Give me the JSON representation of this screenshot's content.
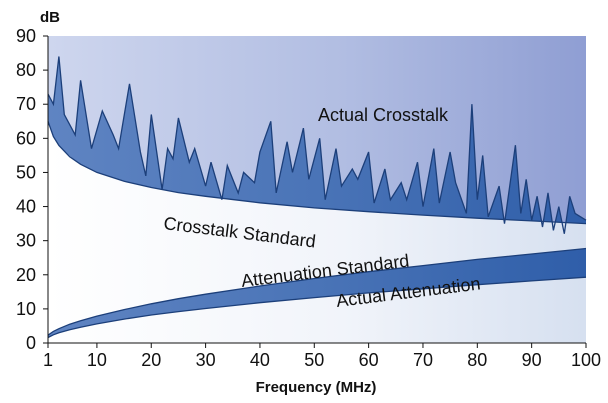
{
  "chart_data": {
    "type": "area",
    "title": "",
    "xlabel": "Frequency (MHz)",
    "ylabel": "dB",
    "xlim": [
      1,
      100
    ],
    "ylim": [
      0,
      90
    ],
    "x_ticks": [
      1,
      10,
      20,
      30,
      40,
      50,
      60,
      70,
      80,
      90,
      100
    ],
    "y_ticks": [
      0,
      10,
      20,
      30,
      40,
      50,
      60,
      70,
      80,
      90
    ],
    "grid": false,
    "legend": "none",
    "colors": {
      "band_dark": "#3a66a8",
      "band_light": "#ffffff",
      "background_top": "#9aa6d6",
      "background_bottom": "#ffffff",
      "line": "#1c3f7a"
    },
    "series": [
      {
        "name": "Actual Crosstalk",
        "x": [
          1,
          2,
          3,
          4,
          6,
          7,
          9,
          11,
          13,
          14,
          16,
          18,
          19,
          20,
          22,
          23,
          24,
          25,
          27,
          28,
          30,
          31,
          33,
          34,
          36,
          37,
          39,
          40,
          42,
          43,
          45,
          46,
          48,
          49,
          51,
          52,
          54,
          55,
          57,
          58,
          60,
          61,
          63,
          64,
          66,
          67,
          69,
          70,
          72,
          73,
          75,
          76,
          78,
          79,
          80,
          81,
          82,
          84,
          85,
          87,
          88,
          89,
          90,
          91,
          92,
          93,
          94,
          95,
          96,
          97,
          98,
          100
        ],
        "y": [
          73,
          70,
          84,
          67,
          61,
          77,
          57,
          68,
          61,
          57,
          76,
          56,
          49,
          67,
          45,
          57,
          54,
          66,
          53,
          57,
          46,
          53,
          42,
          52,
          44,
          50,
          47,
          56,
          65,
          44,
          59,
          50,
          63,
          48,
          60,
          42,
          57,
          46,
          51,
          48,
          56,
          41,
          51,
          42,
          47,
          42,
          53,
          40,
          57,
          41,
          56,
          47,
          38,
          70,
          42,
          55,
          37,
          46,
          35,
          58,
          38,
          48,
          36,
          43,
          34,
          44,
          33,
          40,
          32,
          43,
          38,
          36
        ]
      },
      {
        "name": "Crosstalk Standard",
        "x": [
          1,
          2,
          3,
          5,
          7,
          10,
          15,
          20,
          25,
          30,
          40,
          50,
          60,
          70,
          80,
          90,
          100
        ],
        "y": [
          65,
          60.5,
          57.9,
          54.6,
          52.4,
          50,
          47.4,
          45.6,
          44.1,
          43,
          41.1,
          39.6,
          38.5,
          37.5,
          36.6,
          35.8,
          35
        ]
      },
      {
        "name": "Attenuation Standard",
        "x": [
          1,
          2,
          3,
          5,
          7,
          10,
          15,
          20,
          25,
          30,
          40,
          50,
          60,
          70,
          80,
          90,
          100
        ],
        "y": [
          2.3,
          3.4,
          4.2,
          5.5,
          6.5,
          7.9,
          9.8,
          11.5,
          13,
          14.3,
          16.7,
          18.9,
          20.9,
          22.7,
          24.5,
          26.1,
          27.7
        ]
      },
      {
        "name": "Actual Attenuation",
        "x": [
          1,
          2,
          3,
          5,
          7,
          10,
          15,
          20,
          25,
          30,
          40,
          50,
          60,
          70,
          80,
          90,
          100
        ],
        "y": [
          1.6,
          2.4,
          3,
          3.9,
          4.6,
          5.6,
          7,
          8.2,
          9.2,
          10.1,
          11.8,
          13.3,
          14.7,
          15.9,
          17.1,
          18.2,
          19.3
        ]
      }
    ],
    "annotations": [
      "Actual Crosstalk",
      "Crosstalk Standard",
      "Attenuation Standard",
      "Actual Attenuation"
    ]
  }
}
